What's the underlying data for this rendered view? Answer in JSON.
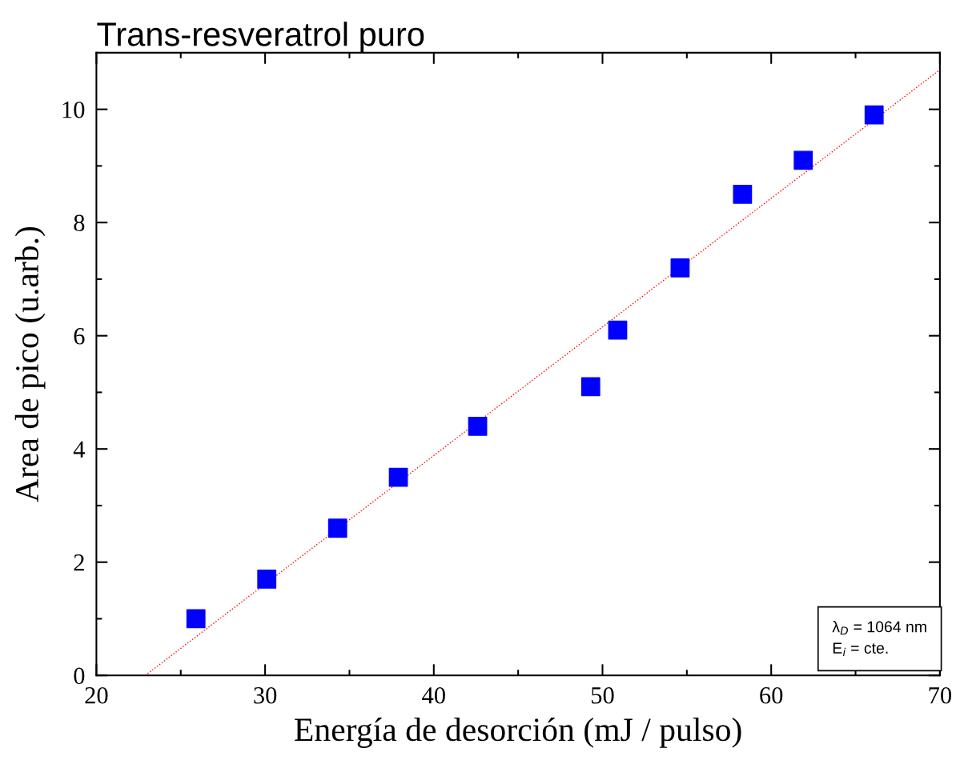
{
  "chart_data": {
    "type": "scatter",
    "title": "Trans-resveratrol puro",
    "xlabel": "Energía de desorción (mJ / pulso)",
    "ylabel": "Area de pico (u.arb.)",
    "series": [
      {
        "color": "#0000ff",
        "marker": "square",
        "x": [
          25.9,
          30.1,
          34.3,
          37.9,
          42.6,
          49.3,
          50.9,
          54.6,
          58.3,
          61.9,
          66.1
        ],
        "values": [
          1.0,
          1.7,
          2.6,
          3.5,
          4.4,
          5.1,
          6.1,
          7.2,
          8.5,
          9.1,
          9.9
        ]
      },
      {
        "type": "line",
        "color": "#ff0000",
        "line_style": "dotted",
        "marker": "none",
        "x": [
          22.9,
          70
        ],
        "values": [
          0,
          10.7
        ]
      }
    ],
    "xlim": [
      20,
      70
    ],
    "xticks": [
      20,
      30,
      40,
      50,
      60,
      70
    ],
    "ylim": [
      0,
      11
    ],
    "yticks": [
      0,
      2,
      4,
      6,
      8,
      10
    ],
    "grid": false,
    "legend": false,
    "annotations": [
      "λ$_{D}$ = 1064 nm",
      "E$_{i}$ = cte."
    ]
  }
}
